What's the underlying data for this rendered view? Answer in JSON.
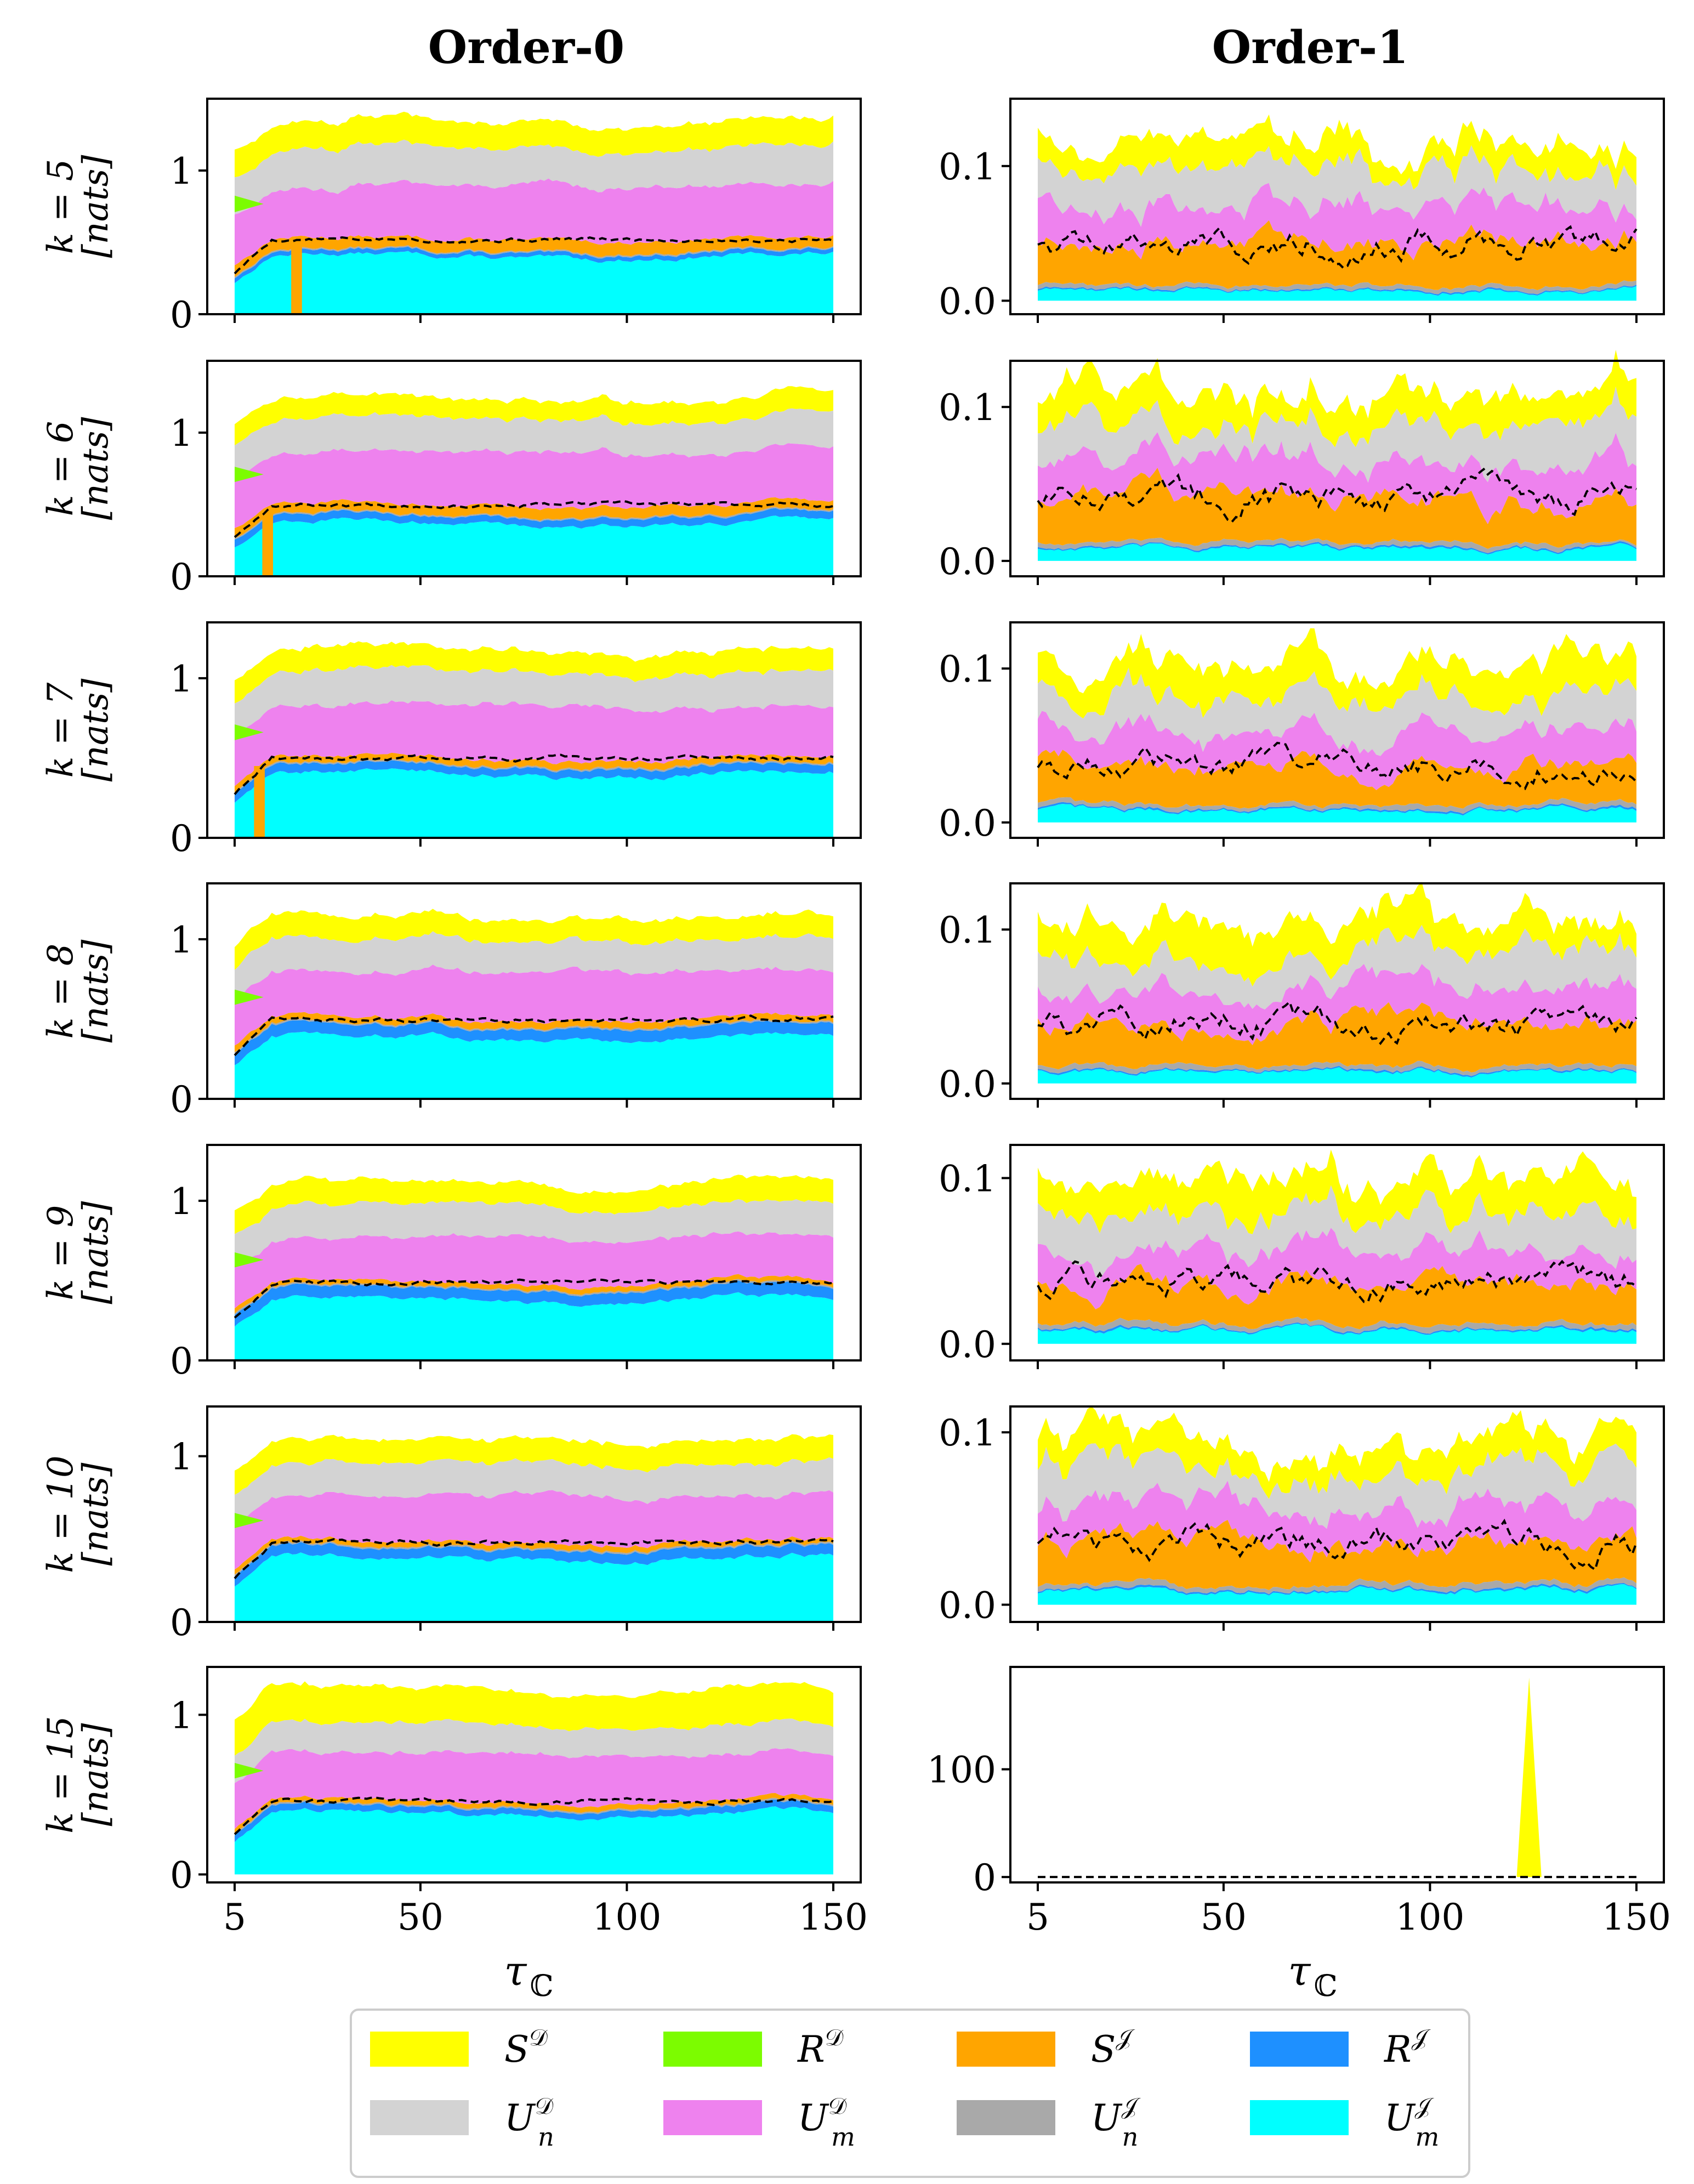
{
  "figure": {
    "columns": [
      "Order-0",
      "Order-1"
    ],
    "xlabel": "τ",
    "xlabel_sub": "ℂ",
    "unit_label": "[nats]"
  },
  "legend": {
    "entries": [
      {
        "key": "S_D",
        "base": "S",
        "sup": "𝒟",
        "sub": "",
        "color": "#ffff00"
      },
      {
        "key": "R_D",
        "base": "R",
        "sup": "𝒟",
        "sub": "",
        "color": "#7cfc00"
      },
      {
        "key": "S_J",
        "base": "S",
        "sup": "𝒥",
        "sub": "",
        "color": "#ffa500"
      },
      {
        "key": "R_J",
        "base": "R",
        "sup": "𝒥",
        "sub": "",
        "color": "#1e90ff"
      },
      {
        "key": "Un_D",
        "base": "U",
        "sup": "𝒟",
        "sub": "n",
        "color": "#d3d3d3"
      },
      {
        "key": "Um_D",
        "base": "U",
        "sup": "𝒟",
        "sub": "m",
        "color": "#ee82ee"
      },
      {
        "key": "Un_J",
        "base": "U",
        "sup": "𝒥",
        "sub": "n",
        "color": "#a9a9a9"
      },
      {
        "key": "Um_J",
        "base": "U",
        "sup": "𝒥",
        "sub": "m",
        "color": "#00ffff"
      }
    ]
  },
  "chart_data": [
    {
      "type": "area",
      "panel": "Order-0, k = 5",
      "row_label": "k = 5",
      "xlim": [
        5,
        150
      ],
      "ylim": [
        0,
        1.5
      ],
      "xticks": [
        5,
        50,
        100,
        150
      ],
      "yticks": [
        {
          "v": 0,
          "label": "0"
        },
        {
          "v": 1,
          "label": "1"
        }
      ],
      "show_xtick_labels": false,
      "series": [
        {
          "name": "Um_J",
          "level": 0.4
        },
        {
          "name": "R_J",
          "level": 0.03
        },
        {
          "name": "Un_J",
          "level": 0.01
        },
        {
          "name": "S_J",
          "level": 0.08
        },
        {
          "name": "Um_D",
          "level": 0.37
        },
        {
          "name": "R_D",
          "level": 0.0
        },
        {
          "name": "Un_D",
          "level": 0.26
        },
        {
          "name": "S_D",
          "level": 0.18
        }
      ],
      "dashed_total": 0.52,
      "spikes": [
        {
          "x": 20,
          "depth": 0.5,
          "color": "#ffa500"
        }
      ]
    },
    {
      "type": "area",
      "panel": "Order-1, k = 5",
      "row_label": "k = 5",
      "xlim": [
        5,
        150
      ],
      "ylim": [
        -0.01,
        0.15
      ],
      "xticks": [
        5,
        50,
        100,
        150
      ],
      "yticks": [
        {
          "v": 0,
          "label": "0.0"
        },
        {
          "v": 0.1,
          "label": "0.1"
        }
      ],
      "show_xtick_labels": false,
      "series": [
        {
          "name": "Um_J",
          "level": 0.008
        },
        {
          "name": "R_J",
          "level": 0.001
        },
        {
          "name": "Un_J",
          "level": 0.003
        },
        {
          "name": "S_J",
          "level": 0.033
        },
        {
          "name": "Um_D",
          "level": 0.03
        },
        {
          "name": "R_D",
          "level": 0.0
        },
        {
          "name": "Un_D",
          "level": 0.027
        },
        {
          "name": "S_D",
          "level": 0.02
        }
      ],
      "dashed_total": 0.045
    },
    {
      "type": "area",
      "panel": "Order-0, k = 6",
      "row_label": "k = 6",
      "xlim": [
        5,
        150
      ],
      "ylim": [
        0,
        1.5
      ],
      "xticks": [
        5,
        50,
        100,
        150
      ],
      "yticks": [
        {
          "v": 0,
          "label": "0"
        },
        {
          "v": 1,
          "label": "1"
        }
      ],
      "show_xtick_labels": false,
      "series": [
        {
          "name": "Um_J",
          "level": 0.37
        },
        {
          "name": "R_J",
          "level": 0.05
        },
        {
          "name": "Un_J",
          "level": 0.01
        },
        {
          "name": "S_J",
          "level": 0.07
        },
        {
          "name": "Um_D",
          "level": 0.37
        },
        {
          "name": "R_D",
          "level": 0.0
        },
        {
          "name": "Un_D",
          "level": 0.23
        },
        {
          "name": "S_D",
          "level": 0.14
        }
      ],
      "dashed_total": 0.5,
      "spikes": [
        {
          "x": 13,
          "depth": 0.45,
          "color": "#ffa500"
        }
      ]
    },
    {
      "type": "area",
      "panel": "Order-1, k = 6",
      "row_label": "k = 6",
      "xlim": [
        5,
        150
      ],
      "ylim": [
        -0.01,
        0.13
      ],
      "xticks": [
        5,
        50,
        100,
        150
      ],
      "yticks": [
        {
          "v": 0,
          "label": "0.0"
        },
        {
          "v": 0.1,
          "label": "0.1"
        }
      ],
      "show_xtick_labels": false,
      "series": [
        {
          "name": "Um_J",
          "level": 0.008
        },
        {
          "name": "R_J",
          "level": 0.001
        },
        {
          "name": "Un_J",
          "level": 0.003
        },
        {
          "name": "S_J",
          "level": 0.03
        },
        {
          "name": "Um_D",
          "level": 0.025
        },
        {
          "name": "R_D",
          "level": 0.0
        },
        {
          "name": "Un_D",
          "level": 0.025
        },
        {
          "name": "S_D",
          "level": 0.02
        }
      ],
      "dashed_total": 0.042
    },
    {
      "type": "area",
      "panel": "Order-0, k = 7",
      "row_label": "k = 7",
      "xlim": [
        5,
        150
      ],
      "ylim": [
        0,
        1.35
      ],
      "xticks": [
        5,
        50,
        100,
        150
      ],
      "yticks": [
        {
          "v": 0,
          "label": "0"
        },
        {
          "v": 1,
          "label": "1"
        }
      ],
      "show_xtick_labels": false,
      "series": [
        {
          "name": "Um_J",
          "level": 0.4
        },
        {
          "name": "R_J",
          "level": 0.05
        },
        {
          "name": "Un_J",
          "level": 0.01
        },
        {
          "name": "S_J",
          "level": 0.04
        },
        {
          "name": "Um_D",
          "level": 0.33
        },
        {
          "name": "R_D",
          "level": 0.0
        },
        {
          "name": "Un_D",
          "level": 0.21
        },
        {
          "name": "S_D",
          "level": 0.14
        }
      ],
      "dashed_total": 0.5,
      "spikes": [
        {
          "x": 11,
          "depth": 0.3,
          "color": "#ffa500"
        }
      ]
    },
    {
      "type": "area",
      "panel": "Order-1, k = 7",
      "row_label": "k = 7",
      "xlim": [
        5,
        150
      ],
      "ylim": [
        -0.01,
        0.13
      ],
      "xticks": [
        5,
        50,
        100,
        150
      ],
      "yticks": [
        {
          "v": 0,
          "label": "0.0"
        },
        {
          "v": 0.1,
          "label": "0.1"
        }
      ],
      "show_xtick_labels": false,
      "series": [
        {
          "name": "Um_J",
          "level": 0.008
        },
        {
          "name": "R_J",
          "level": 0.001
        },
        {
          "name": "Un_J",
          "level": 0.003
        },
        {
          "name": "S_J",
          "level": 0.026
        },
        {
          "name": "Um_D",
          "level": 0.022
        },
        {
          "name": "R_D",
          "level": 0.0
        },
        {
          "name": "Un_D",
          "level": 0.025
        },
        {
          "name": "S_D",
          "level": 0.022
        }
      ],
      "dashed_total": 0.038
    },
    {
      "type": "area",
      "panel": "Order-0, k = 8",
      "row_label": "k = 8",
      "xlim": [
        5,
        150
      ],
      "ylim": [
        0,
        1.35
      ],
      "xticks": [
        5,
        50,
        100,
        150
      ],
      "yticks": [
        {
          "v": 0,
          "label": "0"
        },
        {
          "v": 1,
          "label": "1"
        }
      ],
      "show_xtick_labels": false,
      "series": [
        {
          "name": "Um_J",
          "level": 0.38
        },
        {
          "name": "R_J",
          "level": 0.07
        },
        {
          "name": "Un_J",
          "level": 0.01
        },
        {
          "name": "S_J",
          "level": 0.04
        },
        {
          "name": "Um_D",
          "level": 0.3
        },
        {
          "name": "R_D",
          "level": 0.0
        },
        {
          "name": "Un_D",
          "level": 0.2
        },
        {
          "name": "S_D",
          "level": 0.14
        }
      ],
      "dashed_total": 0.5
    },
    {
      "type": "area",
      "panel": "Order-1, k = 8",
      "row_label": "k = 8",
      "xlim": [
        5,
        150
      ],
      "ylim": [
        -0.01,
        0.13
      ],
      "xticks": [
        5,
        50,
        100,
        150
      ],
      "yticks": [
        {
          "v": 0,
          "label": "0.0"
        },
        {
          "v": 0.1,
          "label": "0.1"
        }
      ],
      "show_xtick_labels": false,
      "series": [
        {
          "name": "Um_J",
          "level": 0.008
        },
        {
          "name": "R_J",
          "level": 0.001
        },
        {
          "name": "Un_J",
          "level": 0.003
        },
        {
          "name": "S_J",
          "level": 0.028
        },
        {
          "name": "Um_D",
          "level": 0.022
        },
        {
          "name": "R_D",
          "level": 0.0
        },
        {
          "name": "Un_D",
          "level": 0.023
        },
        {
          "name": "S_D",
          "level": 0.022
        }
      ],
      "dashed_total": 0.04
    },
    {
      "type": "area",
      "panel": "Order-0, k = 9",
      "row_label": "k = 9",
      "xlim": [
        5,
        150
      ],
      "ylim": [
        0,
        1.35
      ],
      "xticks": [
        5,
        50,
        100,
        150
      ],
      "yticks": [
        {
          "v": 0,
          "label": "0"
        },
        {
          "v": 1,
          "label": "1"
        }
      ],
      "show_xtick_labels": false,
      "series": [
        {
          "name": "Um_J",
          "level": 0.38
        },
        {
          "name": "R_J",
          "level": 0.07
        },
        {
          "name": "Un_J",
          "level": 0.01
        },
        {
          "name": "S_J",
          "level": 0.03
        },
        {
          "name": "Um_D",
          "level": 0.28
        },
        {
          "name": "R_D",
          "level": 0.0
        },
        {
          "name": "Un_D",
          "level": 0.2
        },
        {
          "name": "S_D",
          "level": 0.14
        }
      ],
      "dashed_total": 0.49
    },
    {
      "type": "area",
      "panel": "Order-1, k = 9",
      "row_label": "k = 9",
      "xlim": [
        5,
        150
      ],
      "ylim": [
        -0.01,
        0.12
      ],
      "xticks": [
        5,
        50,
        100,
        150
      ],
      "yticks": [
        {
          "v": 0,
          "label": "0.0"
        },
        {
          "v": 0.1,
          "label": "0.1"
        }
      ],
      "show_xtick_labels": false,
      "series": [
        {
          "name": "Um_J",
          "level": 0.008
        },
        {
          "name": "R_J",
          "level": 0.001
        },
        {
          "name": "Un_J",
          "level": 0.003
        },
        {
          "name": "S_J",
          "level": 0.025
        },
        {
          "name": "Um_D",
          "level": 0.02
        },
        {
          "name": "R_D",
          "level": 0.0
        },
        {
          "name": "Un_D",
          "level": 0.023
        },
        {
          "name": "S_D",
          "level": 0.02
        }
      ],
      "dashed_total": 0.037
    },
    {
      "type": "area",
      "panel": "Order-0, k = 10",
      "row_label": "k = 10",
      "xlim": [
        5,
        150
      ],
      "ylim": [
        0,
        1.3
      ],
      "xticks": [
        5,
        50,
        100,
        150
      ],
      "yticks": [
        {
          "v": 0,
          "label": "0"
        },
        {
          "v": 1,
          "label": "1"
        }
      ],
      "show_xtick_labels": false,
      "series": [
        {
          "name": "Um_J",
          "level": 0.38
        },
        {
          "name": "R_J",
          "level": 0.06
        },
        {
          "name": "Un_J",
          "level": 0.01
        },
        {
          "name": "S_J",
          "level": 0.03
        },
        {
          "name": "Um_D",
          "level": 0.28
        },
        {
          "name": "R_D",
          "level": 0.0
        },
        {
          "name": "Un_D",
          "level": 0.19
        },
        {
          "name": "S_D",
          "level": 0.14
        }
      ],
      "dashed_total": 0.48
    },
    {
      "type": "area",
      "panel": "Order-1, k = 10",
      "row_label": "k = 10",
      "xlim": [
        5,
        150
      ],
      "ylim": [
        -0.01,
        0.115
      ],
      "xticks": [
        5,
        50,
        100,
        150
      ],
      "yticks": [
        {
          "v": 0,
          "label": "0.0"
        },
        {
          "v": 0.1,
          "label": "0.1"
        }
      ],
      "show_xtick_labels": false,
      "series": [
        {
          "name": "Um_J",
          "level": 0.008
        },
        {
          "name": "R_J",
          "level": 0.001
        },
        {
          "name": "Un_J",
          "level": 0.003
        },
        {
          "name": "S_J",
          "level": 0.025
        },
        {
          "name": "Um_D",
          "level": 0.02
        },
        {
          "name": "R_D",
          "level": 0.0
        },
        {
          "name": "Un_D",
          "level": 0.022
        },
        {
          "name": "S_D",
          "level": 0.018
        }
      ],
      "dashed_total": 0.037
    },
    {
      "type": "area",
      "panel": "Order-0, k = 15",
      "row_label": "k = 15",
      "xlim": [
        5,
        150
      ],
      "ylim": [
        -0.05,
        1.3
      ],
      "xticks": [
        5,
        50,
        100,
        150
      ],
      "yticks": [
        {
          "v": 0,
          "label": "0"
        },
        {
          "v": 1,
          "label": "1"
        }
      ],
      "show_xtick_labels": true,
      "series": [
        {
          "name": "Um_J",
          "level": 0.38
        },
        {
          "name": "R_J",
          "level": 0.04
        },
        {
          "name": "Un_J",
          "level": 0.01
        },
        {
          "name": "S_J",
          "level": 0.03
        },
        {
          "name": "Um_D",
          "level": 0.3
        },
        {
          "name": "R_D",
          "level": 0.0
        },
        {
          "name": "Un_D",
          "level": 0.18
        },
        {
          "name": "S_D",
          "level": 0.22
        }
      ],
      "dashed_total": 0.46
    },
    {
      "type": "area",
      "panel": "Order-1, k = 15",
      "row_label": "k = 15",
      "xlim": [
        5,
        150
      ],
      "ylim": [
        -5,
        195
      ],
      "xticks": [
        5,
        50,
        100,
        150
      ],
      "yticks": [
        {
          "v": 0,
          "label": "0"
        },
        {
          "v": 100,
          "label": "100"
        }
      ],
      "show_xtick_labels": true,
      "series": [
        {
          "name": "S_D",
          "level": 0.0
        }
      ],
      "dashed_total": 0.0,
      "peak": {
        "x": 124,
        "y": 185,
        "width": 3,
        "color": "#ffff00"
      }
    }
  ]
}
